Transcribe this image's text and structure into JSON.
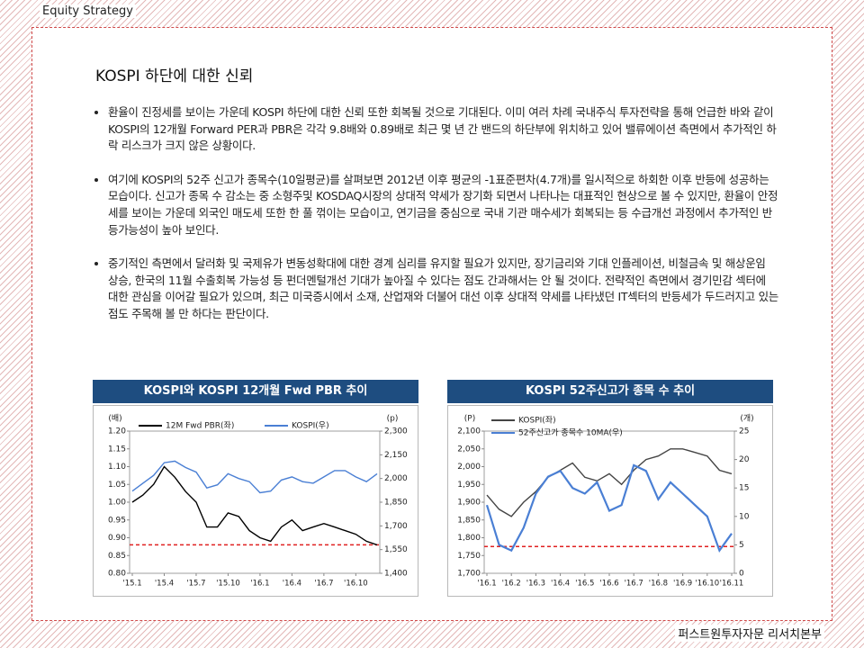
{
  "header": "Equity Strategy",
  "title": "KOSPI 하단에 대한 신뢰",
  "bullets": [
    "환율이 진정세를 보이는 가운데 KOSPI 하단에 대한 신뢰 또한 회복될 것으로 기대된다. 이미 여러 차례 국내주식 투자전략을 통해 언급한 바와 같이 KOSPI의 12개월 Forward PER과 PBR은 각각 9.8배와 0.89배로 최근 몇 년 간 밴드의 하단부에 위치하고 있어 밸류에이션 측면에서 추가적인 하락 리스크가 크지 않은 상황이다.",
    "여기에 KOSPI의 52주 신고가 종목수(10일평균)를 살펴보면 2012년 이후 평균의 -1표준편차(4.7개)를 일시적으로 하회한 이후 반등에 성공하는 모습이다. 신고가 종목 수 감소는 중 소형주및 KOSDAQ시장의 상대적 약세가 장기화 되면서 나타나는 대표적인 현상으로 볼 수 있지만, 환율이 안정세를 보이는 가운데 외국인 매도세 또한 한 풀 꺾이는 모습이고, 연기금을 중심으로 국내 기관 매수세가 회복되는 등 수급개선 과정에서 추가적인 반등가능성이 높아 보인다.",
    "중기적인 측면에서 달러화 및 국제유가 변동성확대에 대한 경계 심리를 유지할 필요가 있지만, 장기금리와 기대 인플레이션, 비철금속 및 해상운임 상승, 한국의 11월 수출회복 가능성 등 펀더멘털개선 기대가 높아질 수 있다는 점도 간과해서는 안 될 것이다. 전략적인 측면에서 경기민감 섹터에 대한 관심을 이어갈 필요가 있으며, 최근 미국증시에서 소재, 산업재와 더불어 대선 이후 상대적 약세를 나타냈던 IT섹터의 반등세가 두드러지고 있는 점도 주목해 볼 만 하다는 판단이다."
  ],
  "chart_data": [
    {
      "type": "line",
      "title": "KOSPI와 KOSPI 12개월 Fwd PBR 추이",
      "legend": "top",
      "y_unit": "(배)",
      "y2_unit": "(p)",
      "categories": [
        "'15.1",
        null,
        null,
        "'15.4",
        null,
        null,
        "'15.7",
        null,
        null,
        "'15.10",
        null,
        null,
        "'16.1",
        null,
        null,
        "'16.4",
        null,
        null,
        "'16.7",
        null,
        null,
        "'16.10",
        null,
        null
      ],
      "series": [
        {
          "name": "12M Fwd PBR(좌)",
          "color": "#000000",
          "axis": "y",
          "values": [
            1.0,
            1.02,
            1.05,
            1.1,
            1.07,
            1.03,
            1.0,
            0.93,
            0.93,
            0.97,
            0.96,
            0.92,
            0.9,
            0.89,
            0.93,
            0.95,
            0.92,
            0.93,
            0.94,
            0.93,
            0.92,
            0.91,
            0.89,
            0.88
          ]
        },
        {
          "name": "KOSPI(우)",
          "color": "#4a7fd4",
          "axis": "y2",
          "values": [
            1920,
            1970,
            2020,
            2100,
            2110,
            2070,
            2040,
            1940,
            1960,
            2030,
            2000,
            1980,
            1910,
            1920,
            1990,
            2010,
            1980,
            1970,
            2010,
            2050,
            2050,
            2010,
            1980,
            2030
          ]
        }
      ],
      "reference_line": {
        "value": 0.88,
        "axis": "y",
        "color": "#e02020"
      },
      "ylim": [
        0.8,
        1.2
      ],
      "yticks": [
        {
          "value": 0.8,
          "label": "0.80"
        },
        {
          "value": 0.85,
          "label": "0.85"
        },
        {
          "value": 0.9,
          "label": "0.90"
        },
        {
          "value": 0.95,
          "label": "0.95"
        },
        {
          "value": 1.0,
          "label": "1.00"
        },
        {
          "value": 1.05,
          "label": "1.05"
        },
        {
          "value": 1.1,
          "label": "1.10"
        },
        {
          "value": 1.15,
          "label": "1.15"
        },
        {
          "value": 1.2,
          "label": "1.20"
        }
      ],
      "y2lim": [
        1400,
        2300
      ],
      "y2ticks": [
        {
          "value": 1400,
          "label": "1,400"
        },
        {
          "value": 1550,
          "label": "1,550"
        },
        {
          "value": 1700,
          "label": "1,700"
        },
        {
          "value": 1850,
          "label": "1,850"
        },
        {
          "value": 2000,
          "label": "2,000"
        },
        {
          "value": 2150,
          "label": "2,150"
        },
        {
          "value": 2300,
          "label": "2,300"
        }
      ]
    },
    {
      "type": "line",
      "title": "KOSPI 52주신고가 종목 수 추이",
      "legend": "upper left",
      "y_unit": "(P)",
      "y2_unit": "(개)",
      "categories": [
        "'16.1",
        null,
        "'16.2",
        null,
        "'16.3",
        null,
        "'16.4",
        null,
        "'16.5",
        null,
        "'16.6",
        null,
        "'16.7",
        null,
        "'16.8",
        null,
        "'16.9",
        null,
        "'16.10",
        null,
        "'16.11"
      ],
      "series": [
        {
          "name": "KOSPI(좌)",
          "color": "#444444",
          "axis": "y",
          "values": [
            1920,
            1880,
            1860,
            1900,
            1930,
            1970,
            1990,
            2010,
            1970,
            1960,
            1980,
            1950,
            1990,
            2020,
            2030,
            2050,
            2050,
            2040,
            2030,
            1990,
            1980
          ]
        },
        {
          "name": "52주신고가 종목수 10MA(우)",
          "color": "#4a7fd4",
          "axis": "y2",
          "values": [
            12,
            5,
            4,
            8,
            14,
            17,
            18,
            15,
            14,
            16,
            11,
            12,
            19,
            18,
            13,
            16,
            14,
            12,
            10,
            4,
            7
          ]
        }
      ],
      "reference_line": {
        "value": 4.7,
        "axis": "y2",
        "color": "#e02020"
      },
      "ylim": [
        1700,
        2100
      ],
      "yticks": [
        {
          "value": 1700,
          "label": "1,700"
        },
        {
          "value": 1750,
          "label": "1,750"
        },
        {
          "value": 1800,
          "label": "1,800"
        },
        {
          "value": 1850,
          "label": "1,850"
        },
        {
          "value": 1900,
          "label": "1,900"
        },
        {
          "value": 1950,
          "label": "1,950"
        },
        {
          "value": 2000,
          "label": "2,000"
        },
        {
          "value": 2050,
          "label": "2,050"
        },
        {
          "value": 2100,
          "label": "2,100"
        }
      ],
      "y2lim": [
        0,
        25
      ],
      "y2ticks": [
        0,
        5,
        10,
        15,
        20,
        25
      ]
    }
  ],
  "footer": "퍼스트원투자자문 리서치본부"
}
